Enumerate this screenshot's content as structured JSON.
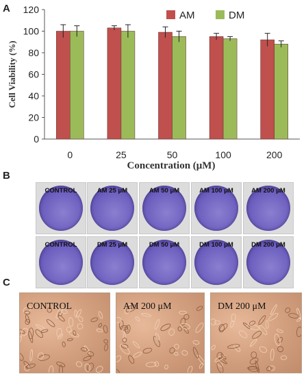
{
  "panels": {
    "a": "A",
    "b": "B",
    "c": "C"
  },
  "chart_data": {
    "type": "bar",
    "categories": [
      "0",
      "25",
      "50",
      "100",
      "200"
    ],
    "series": [
      {
        "name": "AM",
        "color": "#c0504d",
        "values": [
          100,
          103,
          99,
          95,
          92
        ],
        "errors": [
          6,
          2,
          5,
          3,
          6
        ]
      },
      {
        "name": "DM",
        "color": "#9bbb59",
        "values": [
          100,
          100,
          95,
          93,
          88
        ],
        "errors": [
          5,
          6,
          5,
          2,
          3
        ]
      }
    ],
    "xlabel": "Concentration (μM)",
    "ylabel": "Cell Viability (%)",
    "ylim": [
      0,
      120
    ],
    "yticks": [
      0,
      20,
      40,
      60,
      80,
      100,
      120
    ],
    "legend": "top-right",
    "grid": false
  },
  "plates": {
    "row1": [
      "CONTROL",
      "AM 25 μM",
      "AM 50 μM",
      "AM 100 μM",
      "AM 200 μM"
    ],
    "row2": [
      "CONTROL",
      "DM 25 μM",
      "DM 50 μM",
      "DM 100 μM",
      "DM 200 μM"
    ]
  },
  "micrographs": [
    "CONTROL",
    "AM 200 μM",
    "DM 200 μM"
  ]
}
